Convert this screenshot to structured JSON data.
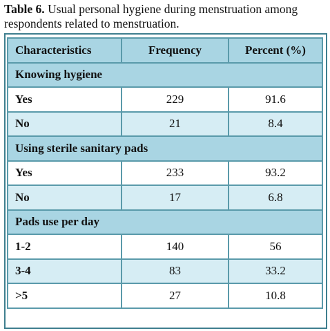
{
  "caption": {
    "label": "Table 6.",
    "text": "Usual personal hygiene during menstruation among respondents related to menstruation."
  },
  "table": {
    "header": [
      "Characteristics",
      "Frequency",
      "Percent (%)"
    ],
    "sections": [
      {
        "title": "Knowing hygiene",
        "rows": [
          [
            "Yes",
            229,
            91.6
          ],
          [
            "No",
            21,
            8.4
          ]
        ]
      },
      {
        "title": "Using sterile sanitary pads",
        "rows": [
          [
            "Yes",
            233,
            93.2
          ],
          [
            "No",
            17,
            6.8
          ]
        ]
      },
      {
        "title": "Pads use per day",
        "rows": [
          [
            "1-2",
            140,
            56
          ],
          [
            "3-4",
            83,
            33.2
          ],
          [
            ">5",
            27,
            10.8
          ]
        ]
      }
    ]
  }
}
